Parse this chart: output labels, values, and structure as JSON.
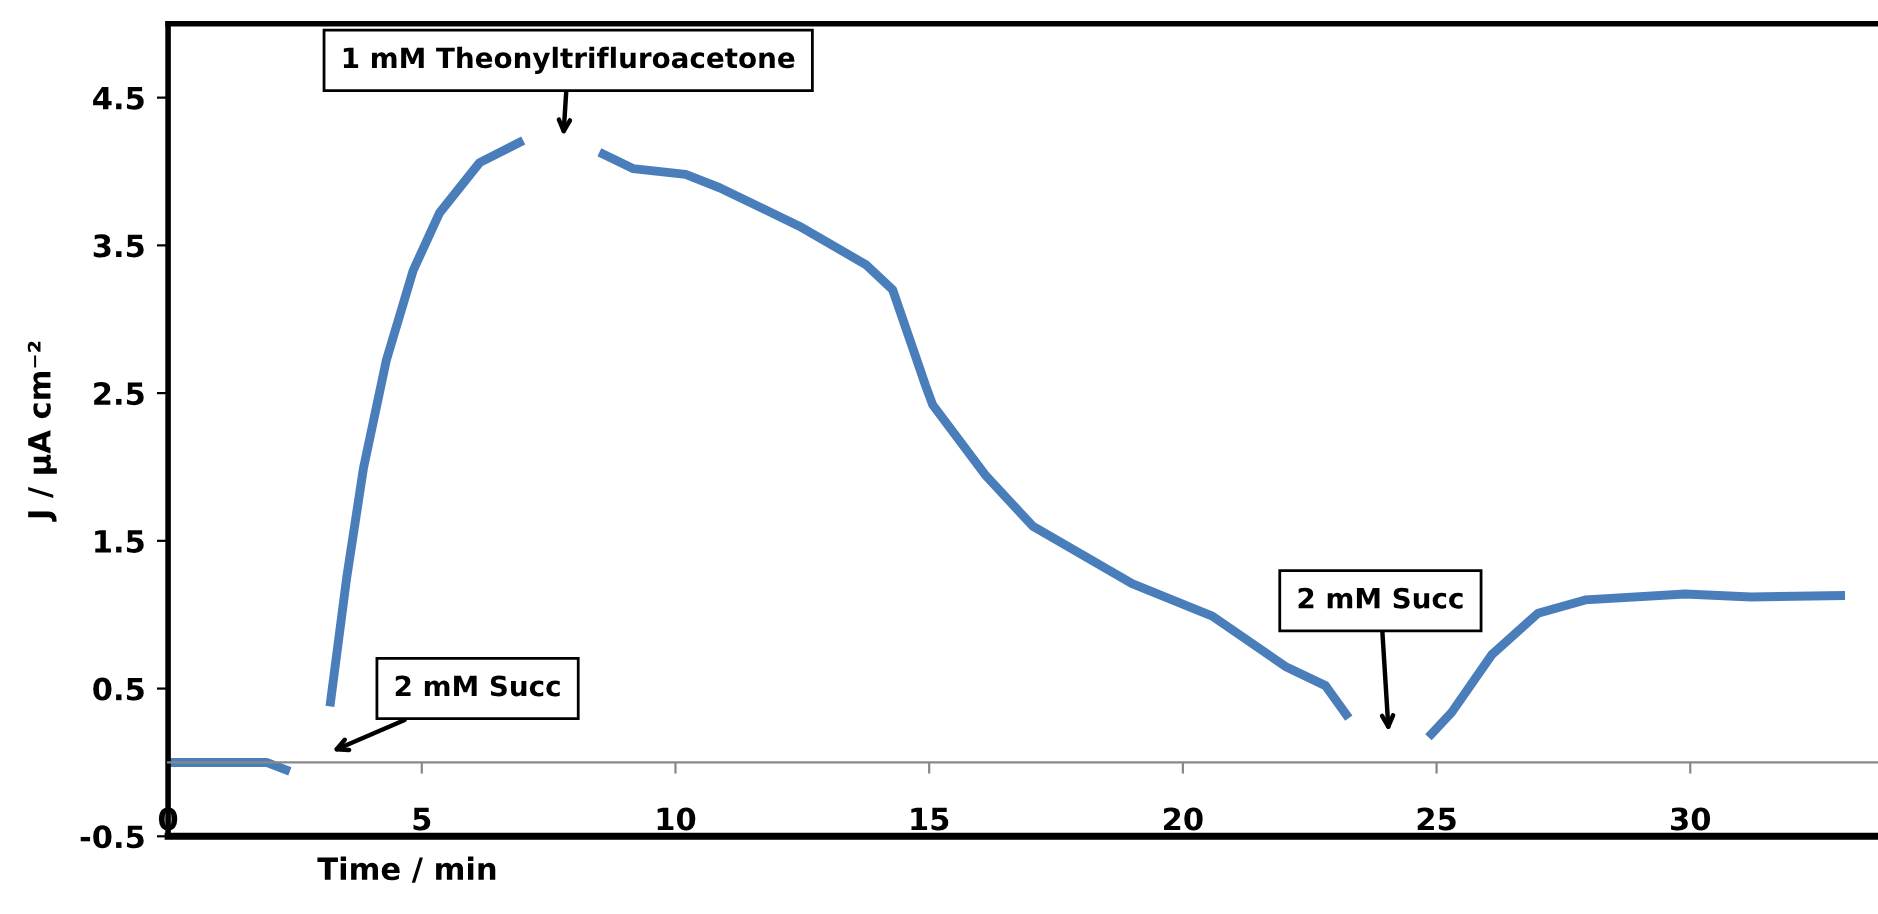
{
  "chart_data": {
    "type": "line",
    "xlabel": "Time / min",
    "ylabel": "J / µA cm⁻²",
    "x": [
      0,
      1.94,
      2.4,
      2.8,
      3.19,
      3.52,
      3.85,
      4.3,
      4.83,
      5.35,
      6.14,
      7.0,
      7.8,
      8.5,
      9.16,
      10.2,
      10.87,
      12.44,
      13.75,
      14.28,
      14.67,
      14.93,
      15.07,
      16.12,
      17.04,
      19.0,
      20.58,
      22.02,
      22.81,
      23.27,
      24.06,
      24.84,
      25.3,
      26.09,
      27.0,
      27.93,
      29.9,
      31.2,
      33.05
    ],
    "series": [
      {
        "color": "#4a7ebb",
        "values": [
          0,
          0,
          -0.06,
          null,
          0.38,
          1.25,
          1.99,
          2.72,
          3.33,
          3.72,
          4.06,
          4.21,
          null,
          4.13,
          4.02,
          3.98,
          3.89,
          3.63,
          3.37,
          3.2,
          2.81,
          2.55,
          2.42,
          1.94,
          1.6,
          1.21,
          0.99,
          0.65,
          0.52,
          0.3,
          null,
          0.17,
          0.34,
          0.73,
          1.01,
          1.1,
          1.14,
          1.12,
          1.13
        ]
      }
    ],
    "xlim": [
      0,
      33.7
    ],
    "xticks": [
      0,
      5,
      10,
      15,
      20,
      25,
      30
    ],
    "ylim": [
      -0.5,
      5.0
    ],
    "yticks": [
      -0.5,
      0.5,
      1.5,
      2.5,
      3.5,
      4.5
    ],
    "annotations": [
      "1 mM Theonyltrifluroacetone",
      "2 mM Succ",
      "2 mM Succ"
    ],
    "grid": false,
    "marker": "none",
    "line_style": "solid"
  }
}
